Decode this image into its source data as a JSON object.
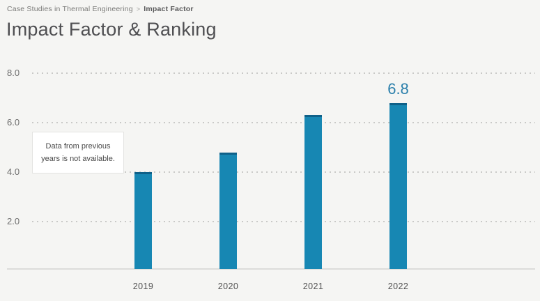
{
  "breadcrumb": {
    "journal": "Case Studies in Thermal Engineering",
    "separator": ">",
    "current": "Impact Factor"
  },
  "page_title": "Impact Factor & Ranking",
  "annotation_text": "Data from previous years is not available.",
  "colors": {
    "bar": "#1787b3",
    "bar_cap": "#0f6189",
    "data_label_blue": "#2a7fab",
    "background": "#f5f5f3"
  },
  "chart_data": {
    "type": "bar",
    "title": "Impact Factor & Ranking",
    "categories": [
      "2019",
      "2020",
      "2021",
      "2022"
    ],
    "values": [
      4.0,
      4.8,
      6.3,
      6.8
    ],
    "data_labels": [
      "",
      "",
      "",
      "6.8"
    ],
    "xlabel": "",
    "ylabel": "",
    "yticks": [
      2.0,
      4.0,
      6.0,
      8.0
    ],
    "ytick_labels": [
      "2.0",
      "4.0",
      "6.0",
      "8.0"
    ],
    "ylim": [
      0,
      8.8
    ],
    "grid": "horizontal-dotted",
    "legend": "none",
    "annotation": "Data from previous years is not available."
  }
}
